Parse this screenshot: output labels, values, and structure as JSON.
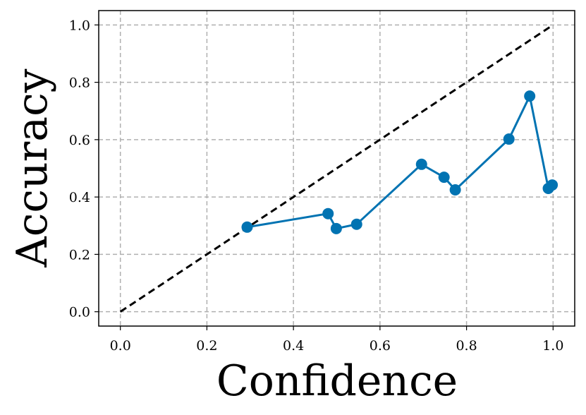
{
  "chart_data": {
    "type": "line",
    "x_label": "Confidence",
    "y_label": "Accuracy",
    "xlim": [
      -0.05,
      1.05
    ],
    "ylim": [
      -0.05,
      1.05
    ],
    "xticks": [
      {
        "value": 0,
        "label": "0.0"
      },
      0.2,
      0.4,
      0.6,
      0.8,
      {
        "value": 1,
        "label": "1.0"
      }
    ],
    "yticks": [
      {
        "value": 0,
        "label": "0.0"
      },
      0.2,
      0.4,
      0.6,
      0.8,
      {
        "value": 1,
        "label": "1.0"
      }
    ],
    "grid": true,
    "series": [
      {
        "color": "#000000",
        "dashed": true,
        "markers": false,
        "x": [
          0,
          1
        ],
        "values": [
          0,
          1
        ]
      },
      {
        "color": "#0173b2",
        "dashed": false,
        "markers": true,
        "x": [
          0.293,
          0.48,
          0.499,
          0.546,
          0.696,
          0.748,
          0.774,
          0.898,
          0.946,
          0.989,
          0.998
        ],
        "values": [
          0.295,
          0.342,
          0.29,
          0.305,
          0.514,
          0.469,
          0.425,
          0.602,
          0.752,
          0.43,
          0.442
        ]
      }
    ]
  }
}
